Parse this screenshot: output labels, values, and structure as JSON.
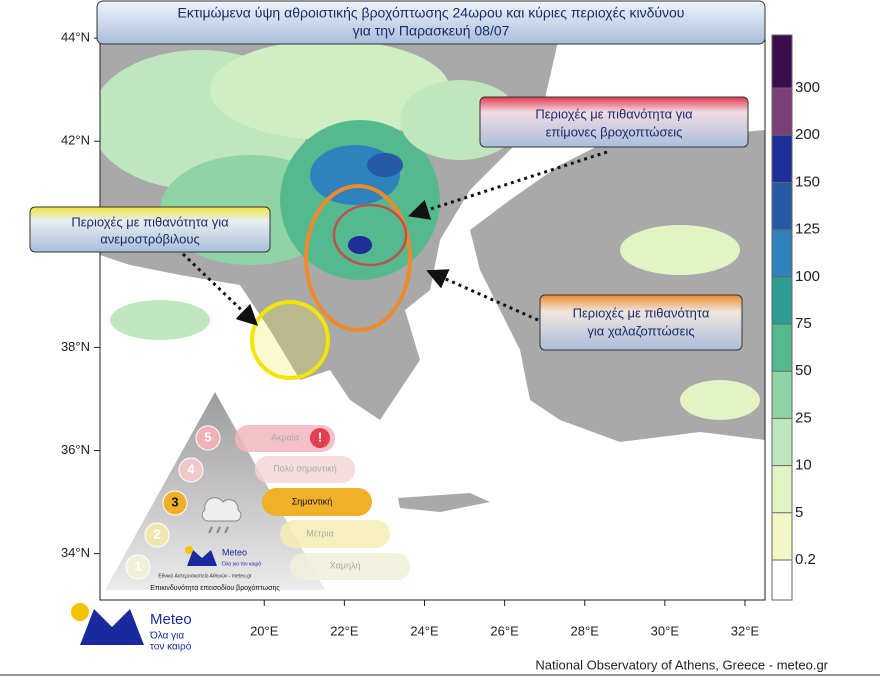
{
  "header": {
    "title_lines": [
      "Εκτιμώμενα ύψη αθροιστικής βροχόπτωσης 24ωρου και κύριες περιοχές κινδύνου",
      "για την Παρασκευή 08/07"
    ]
  },
  "map": {
    "xlim": [
      15.9,
      32.5
    ],
    "ylim": [
      33.1,
      44.1
    ],
    "xticks": [
      {
        "value": 20,
        "label": "20°E"
      },
      {
        "value": 22,
        "label": "22°E"
      },
      {
        "value": 24,
        "label": "24°E"
      },
      {
        "value": 26,
        "label": "26°E"
      },
      {
        "value": 28,
        "label": "28°E"
      },
      {
        "value": 30,
        "label": "30°E"
      },
      {
        "value": 32,
        "label": "32°E"
      }
    ],
    "yticks": [
      {
        "value": 44,
        "label": "44°N"
      },
      {
        "value": 42,
        "label": "42°N"
      },
      {
        "value": 40,
        "label": "40°N"
      },
      {
        "value": 38,
        "label": "38°N"
      },
      {
        "value": 36,
        "label": "36°N"
      },
      {
        "value": 34,
        "label": "34°N"
      }
    ]
  },
  "colorbar": {
    "ticks": [
      0.2,
      5,
      10,
      25,
      50,
      75,
      100,
      125,
      150,
      200,
      300
    ],
    "colors": [
      "#ffffff",
      "#f4f6c6",
      "#e2f3c4",
      "#bfe6bd",
      "#8fd3a6",
      "#55b98f",
      "#2f9c94",
      "#2f82bb",
      "#2659a6",
      "#1f2e98",
      "#7a3f78",
      "#3a0d4e"
    ]
  },
  "annotations": [
    {
      "lines": [
        "Περιοχές με πιθανότητα για",
        "επίμονες βροχοπτώσεις"
      ]
    },
    {
      "lines": [
        "Περιοχές με πιθανότητα για",
        "ανεμοστρόβιλους"
      ]
    },
    {
      "lines": [
        "Περιοχές με πιθανότητα",
        "για χαλαζοπτώσεις"
      ]
    }
  ],
  "risk_scale": {
    "levels": [
      {
        "number": 5,
        "label": "Ακραία"
      },
      {
        "number": 4,
        "label": "Πολύ σημαντική"
      },
      {
        "number": 3,
        "label": "Σημαντική"
      },
      {
        "number": 2,
        "label": "Μέτρια"
      },
      {
        "number": 1,
        "label": "Χαμηλή"
      }
    ],
    "brand": "Meteo",
    "tagline": "Όλα για τον καιρό",
    "credit": "Εθνικό Αστεροσκοπείο Αθηνών - meteo.gr",
    "caption": "Επικινδυνότητα επεισοδίου βροχόπτωσης"
  },
  "logo": {
    "name": "Meteo",
    "tagline_lines": [
      "Όλα για",
      "τον καιρό"
    ]
  },
  "footer": "National Observatory of Athens, Greece - meteo.gr"
}
